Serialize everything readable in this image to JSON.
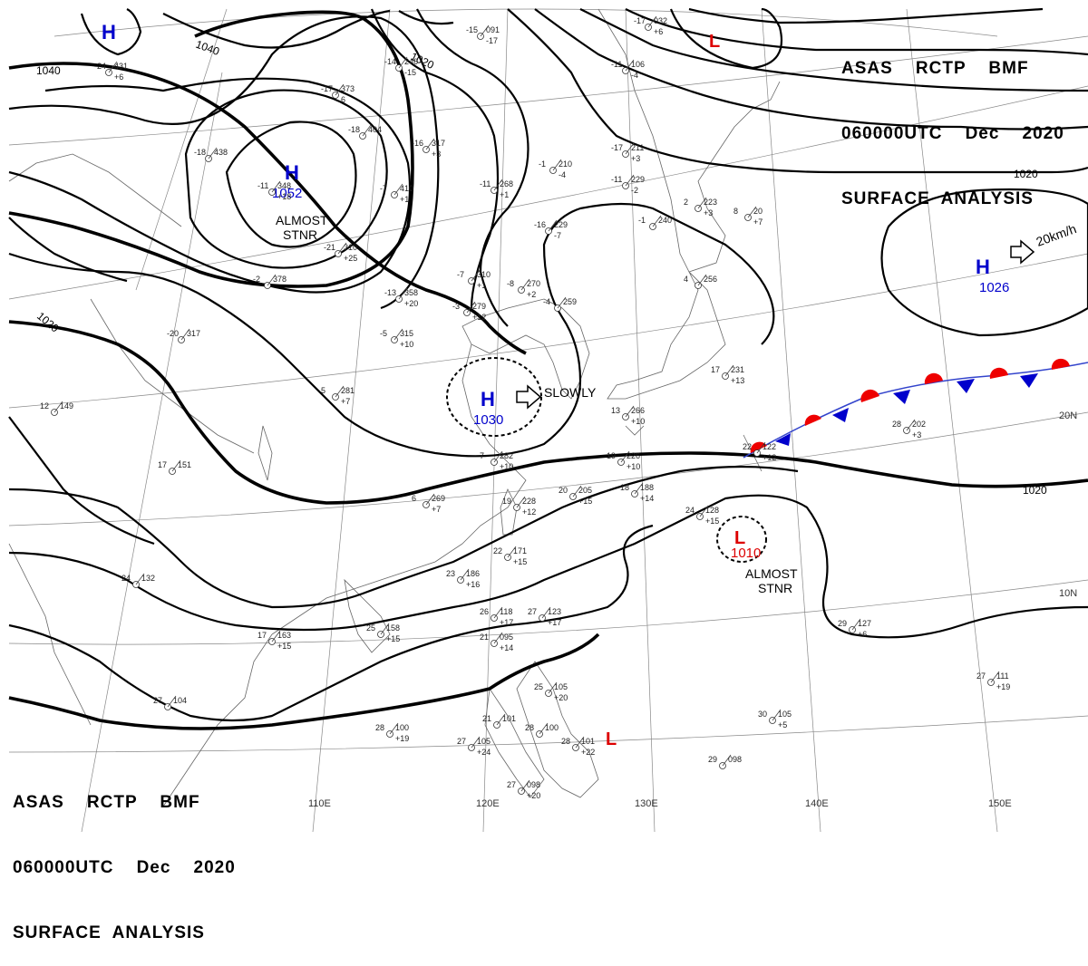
{
  "header_top": {
    "line1": "ASAS    RCTP    BMF",
    "line2": "060000UTC    Dec    2020",
    "line3": "SURFACE  ANALYSIS"
  },
  "header_bottom": {
    "line1": "ASAS    RCTP    BMF",
    "line2": "060000UTC    Dec    2020",
    "line3": "SURFACE  ANALYSIS"
  },
  "colors": {
    "high": "#0000cc",
    "low": "#dd0000",
    "front_warm": "#ee0000",
    "front_cold": "#0000cc",
    "isobar": "#000000"
  },
  "pressure_systems": [
    {
      "id": "h-nw",
      "symbol": "H",
      "value": "",
      "note": ""
    },
    {
      "id": "h-mongolia",
      "symbol": "H",
      "value": "1052",
      "note1": "ALMOST",
      "note2": "STNR"
    },
    {
      "id": "h-eastchina",
      "symbol": "H",
      "value": "1030",
      "note1": "SLOWLY",
      "note2": ""
    },
    {
      "id": "h-pacific",
      "symbol": "H",
      "value": "1026",
      "note1": "20km/h",
      "note2": ""
    },
    {
      "id": "l-north",
      "symbol": "L",
      "value": "",
      "note1": "",
      "note2": ""
    },
    {
      "id": "l-philippine-sea",
      "symbol": "L",
      "value": "1010",
      "note1": "ALMOST",
      "note2": "STNR"
    },
    {
      "id": "l-south",
      "symbol": "L",
      "value": "",
      "note1": "",
      "note2": ""
    }
  ],
  "isobar_labels": [
    "1040",
    "1040",
    "1020",
    "1020",
    "1020",
    "1020"
  ],
  "longitude_labels": [
    "110E",
    "120E",
    "130E",
    "140E",
    "150E"
  ],
  "latitude_labels": [
    "20N",
    "10N"
  ],
  "station_plots": [
    {
      "t": "-24",
      "p": "431",
      "d": "+6"
    },
    {
      "t": "-18",
      "p": "438",
      "d": ""
    },
    {
      "t": "-17",
      "p": "373",
      "d": "6"
    },
    {
      "t": "-18",
      "p": "404",
      "d": ""
    },
    {
      "t": "-16",
      "p": "317",
      "d": "+3"
    },
    {
      "t": "-15",
      "p": "091",
      "d": "-17"
    },
    {
      "t": "-14",
      "p": "246",
      "d": "-15"
    },
    {
      "t": "-17",
      "p": "211",
      "d": "+3"
    },
    {
      "t": "-1",
      "p": "210",
      "d": "-4"
    },
    {
      "t": "-11",
      "p": "229",
      "d": "-2"
    },
    {
      "t": "-16",
      "p": "229",
      "d": "-7"
    },
    {
      "t": "-11",
      "p": "268",
      "d": "+1"
    },
    {
      "t": "-1",
      "p": "240",
      "d": ""
    },
    {
      "t": "2",
      "p": "223",
      "d": "+3"
    },
    {
      "t": "-7",
      "p": "310",
      "d": "+1"
    },
    {
      "t": "-8",
      "p": "270",
      "d": "+2"
    },
    {
      "t": "-13",
      "p": "358",
      "d": "+20"
    },
    {
      "t": "-3",
      "p": "279",
      "d": "+12"
    },
    {
      "t": "-4",
      "p": "259",
      "d": ""
    },
    {
      "t": "-20",
      "p": "317",
      "d": ""
    },
    {
      "t": "-5",
      "p": "315",
      "d": "+10"
    },
    {
      "t": "5",
      "p": "281",
      "d": "+7"
    },
    {
      "t": "12",
      "p": "149",
      "d": ""
    },
    {
      "t": "17",
      "p": "151",
      "d": ""
    },
    {
      "t": "7",
      "p": "282",
      "d": "+10"
    },
    {
      "t": "6",
      "p": "269",
      "d": "+7"
    },
    {
      "t": "19",
      "p": "228",
      "d": "+12"
    },
    {
      "t": "20",
      "p": "205",
      "d": "+15"
    },
    {
      "t": "19",
      "p": "226",
      "d": "+10"
    },
    {
      "t": "18",
      "p": "188",
      "d": "+14"
    },
    {
      "t": "24",
      "p": "128",
      "d": "+15"
    },
    {
      "t": "22",
      "p": "171",
      "d": "+15"
    },
    {
      "t": "23",
      "p": "186",
      "d": "+16"
    },
    {
      "t": "26",
      "p": "118",
      "d": "+17"
    },
    {
      "t": "27",
      "p": "123",
      "d": "+17"
    },
    {
      "t": "21",
      "p": "095",
      "d": "+14"
    },
    {
      "t": "25",
      "p": "158",
      "d": "+15"
    },
    {
      "t": "17",
      "p": "163",
      "d": "+15"
    },
    {
      "t": "24",
      "p": "132",
      "d": ""
    },
    {
      "t": "25",
      "p": "105",
      "d": "+20"
    },
    {
      "t": "28",
      "p": "100",
      "d": "+19"
    },
    {
      "t": "27",
      "p": "105",
      "d": "+24"
    },
    {
      "t": "27",
      "p": "098",
      "d": "+20"
    },
    {
      "t": "29",
      "p": "098",
      "d": ""
    },
    {
      "t": "30",
      "p": "105",
      "d": "+5"
    },
    {
      "t": "27",
      "p": "111",
      "d": "+19"
    },
    {
      "t": "29",
      "p": "127",
      "d": "+6"
    },
    {
      "t": "28",
      "p": "202",
      "d": "+3"
    },
    {
      "t": "22",
      "p": "122",
      "d": "+12"
    },
    {
      "t": "17",
      "p": "231",
      "d": "+13"
    },
    {
      "t": "4",
      "p": "256",
      "d": ""
    },
    {
      "t": "-11",
      "p": "106",
      "d": "-4"
    },
    {
      "t": "-17",
      "p": "032",
      "d": "+6"
    },
    {
      "t": "8",
      "p": "20",
      "d": "+7"
    },
    {
      "t": "13",
      "p": "266",
      "d": "+10"
    },
    {
      "t": "-2",
      "p": "378",
      "d": ""
    },
    {
      "t": "-11",
      "p": "348",
      "d": "+18"
    },
    {
      "t": "-7",
      "p": "410",
      "d": "+1"
    },
    {
      "t": "-21",
      "p": "310",
      "d": "+25"
    },
    {
      "t": "21",
      "p": "101",
      "d": ""
    },
    {
      "t": "27",
      "p": "104",
      "d": ""
    },
    {
      "t": "28",
      "p": "100",
      "d": ""
    },
    {
      "t": "28",
      "p": "101",
      "d": "+22"
    }
  ]
}
